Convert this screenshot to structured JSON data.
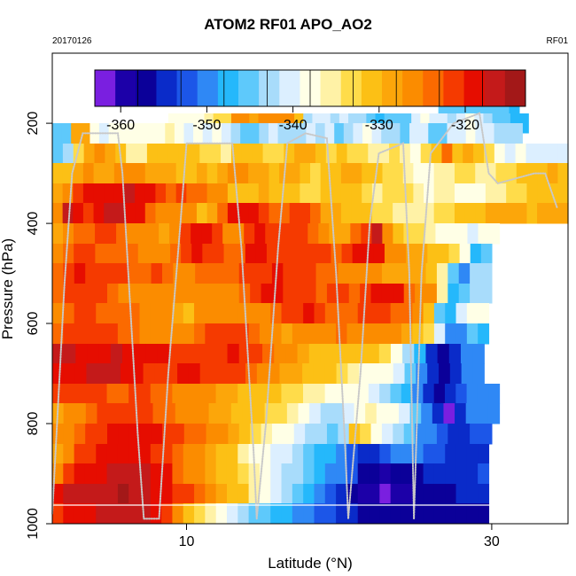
{
  "header": {
    "title": "ATOM2 RF01 APO_AO2",
    "date": "20170126",
    "flight": "RF01"
  },
  "chart_data": {
    "type": "heatmap",
    "title": "ATOM2 RF01 APO_AO2",
    "xlabel": "Latitude (°N)",
    "ylabel": "Pressure (hPa)",
    "xlim": [
      1.2,
      35.0
    ],
    "ylim": [
      1000,
      60
    ],
    "xticks": [
      10,
      30
    ],
    "yticks": [
      200,
      400,
      600,
      800,
      1000
    ],
    "colorbar": {
      "min": -363,
      "max": -313,
      "ticks": [
        -360,
        -350,
        -340,
        -330,
        -320
      ],
      "colors": [
        "#7a1fe0",
        "#1c00a8",
        "#0b0099",
        "#0a2bc9",
        "#1c56e8",
        "#2f88f5",
        "#25b8fb",
        "#5ec9fb",
        "#a8dcfb",
        "#dcefff",
        "#ffffe6",
        "#fff2a6",
        "#ffdc4a",
        "#fcc015",
        "#fca60a",
        "#fb8c00",
        "#fb6a00",
        "#f53a00",
        "#e60d00",
        "#c41a1a",
        "#a31818"
      ]
    },
    "rows": [
      {
        "p": 180,
        "x0": 26.5,
        "x1": 31.8,
        "v": [
          -346,
          -346,
          -346,
          -346,
          -346,
          -345,
          -346,
          -347
        ]
      },
      {
        "p": 200,
        "x0": 8.8,
        "x1": 32.4,
        "v": [
          -338,
          -337,
          -337,
          -337,
          -336,
          -334,
          -333,
          -325,
          -326,
          -328,
          -326,
          -325,
          -327,
          -326,
          -330,
          -342,
          -341,
          -341,
          -343,
          -341,
          -342,
          -343,
          -346,
          -347,
          -346,
          -344,
          -344,
          -341,
          -339,
          -340,
          -341,
          -343,
          -341,
          -338,
          -340,
          -343,
          -345,
          -346,
          -347,
          -347
        ]
      },
      {
        "p": 220,
        "x0": 1.2,
        "x1": 32.0,
        "v": [
          -345,
          -346,
          -328,
          -329,
          -339,
          -340,
          -339,
          -338,
          -338,
          -337,
          -337,
          -339,
          -336,
          -338,
          -341,
          -338,
          -341,
          -339,
          -340,
          -342,
          -344,
          -344,
          -343,
          -340,
          -342,
          -342,
          -342,
          -340,
          -342,
          -341,
          -344,
          -342,
          -340,
          -339,
          -341,
          -342,
          -343,
          -345,
          -340,
          -341,
          -346,
          -344,
          -340,
          -341,
          -338,
          -340,
          -341,
          -343,
          -342,
          -343
        ]
      },
      {
        "p": 260,
        "x0": 1.2,
        "x1": 35.0,
        "v": [
          -345,
          -342,
          -333,
          -328,
          -326,
          -328,
          -332,
          -335,
          -336,
          -332,
          -330,
          -331,
          -332,
          -331,
          -333,
          -334,
          -335,
          -332,
          -330,
          -331,
          -334,
          -333,
          -332,
          -329,
          -328,
          -330,
          -333,
          -332,
          -333,
          -333,
          -336,
          -335,
          -334,
          -336,
          -339,
          -333,
          -331,
          -324,
          -330,
          -329,
          -332,
          -333,
          -338,
          -340,
          -339,
          -341,
          -341,
          -340,
          -341
        ]
      },
      {
        "p": 300,
        "x0": 1.2,
        "x1": 35.0,
        "v": [
          -331,
          -330,
          -328,
          -327,
          -329,
          -328,
          -326,
          -326,
          -327,
          -329,
          -328,
          -328,
          -330,
          -331,
          -329,
          -330,
          -328,
          -326,
          -326,
          -328,
          -329,
          -331,
          -329,
          -328,
          -330,
          -333,
          -332,
          -330,
          -329,
          -329,
          -331,
          -332,
          -333,
          -334,
          -336,
          -337,
          -337,
          -336,
          -335,
          -334,
          -334,
          -336,
          -335,
          -334,
          -333,
          -332,
          -331,
          -330,
          -329,
          -330
        ]
      },
      {
        "p": 340,
        "x0": 1.2,
        "x1": 35.0,
        "v": [
          -329,
          -325,
          -322,
          -319,
          -318,
          -319,
          -318,
          -316,
          -318,
          -320,
          -322,
          -323,
          -322,
          -323,
          -324,
          -326,
          -327,
          -330,
          -332,
          -330,
          -329,
          -330,
          -331,
          -332,
          -333,
          -334,
          -332,
          -330,
          -330,
          -332,
          -334,
          -335,
          -334,
          -333,
          -334,
          -336,
          -337,
          -336,
          -336,
          -337,
          -338,
          -337,
          -336,
          -335,
          -334,
          -333,
          -332,
          -331,
          -330,
          -330
        ]
      },
      {
        "p": 380,
        "x0": 1.2,
        "x1": 35.0,
        "v": [
          -326,
          -317,
          -320,
          -322,
          -318,
          -317,
          -316,
          -318,
          -320,
          -323,
          -325,
          -326,
          -326,
          -326,
          -330,
          -329,
          -323,
          -320,
          -319,
          -320,
          -322,
          -324,
          -323,
          -322,
          -322,
          -324,
          -328,
          -329,
          -330,
          -331,
          -332,
          -333,
          -334,
          -335,
          -336,
          -336,
          -335,
          -334,
          -333,
          -332,
          -331,
          -330,
          -329,
          -328,
          -328,
          -329,
          -330,
          -329,
          -328,
          -328
        ]
      },
      {
        "p": 420,
        "x0": 1.2,
        "x1": 30.5,
        "v": [
          -329,
          -325,
          -323,
          -323,
          -322,
          -322,
          -323,
          -325,
          -326,
          -327,
          -328,
          -326,
          -322,
          -319,
          -319,
          -322,
          -325,
          -325,
          -322,
          -320,
          -321,
          -321,
          -322,
          -321,
          -324,
          -326,
          -328,
          -329,
          -324,
          -322,
          -317,
          -325,
          -330,
          -333,
          -334,
          -336,
          -337,
          -338,
          -339,
          -340,
          -339,
          -338
        ]
      },
      {
        "p": 460,
        "x0": 1.2,
        "x1": 30.0,
        "v": [
          -327,
          -324,
          -322,
          -322,
          -323,
          -323,
          -324,
          -324,
          -325,
          -326,
          -326,
          -324,
          -322,
          -320,
          -321,
          -322,
          -323,
          -323,
          -320,
          -320,
          -321,
          -322,
          -322,
          -321,
          -322,
          -322,
          -323,
          -321,
          -319,
          -318,
          -320,
          -325,
          -327,
          -328,
          -329,
          -330,
          -331,
          -333,
          -338,
          -347,
          -344
        ]
      },
      {
        "p": 500,
        "x0": 1.2,
        "x1": 30.0,
        "v": [
          -324,
          -322,
          -320,
          -321,
          -322,
          -322,
          -322,
          -323,
          -323,
          -322,
          -324,
          -325,
          -325,
          -324,
          -324,
          -323,
          -323,
          -322,
          -321,
          -321,
          -320,
          -321,
          -322,
          -322,
          -323,
          -324,
          -325,
          -326,
          -326,
          -327,
          -328,
          -329,
          -328,
          -328,
          -330,
          -335,
          -344,
          -349,
          -343,
          -342
        ]
      },
      {
        "p": 540,
        "x0": 1.2,
        "x1": 30.0,
        "v": [
          -323,
          -322,
          -321,
          -321,
          -322,
          -324,
          -325,
          -326,
          -326,
          -325,
          -325,
          -326,
          -327,
          -327,
          -326,
          -325,
          -325,
          -324,
          -322,
          -320,
          -320,
          -321,
          -321,
          -322,
          -324,
          -322,
          -322,
          -323,
          -322,
          -320,
          -318,
          -320,
          -323,
          -326,
          -327,
          -336,
          -347,
          -346,
          -342,
          -342
        ]
      },
      {
        "p": 580,
        "x0": 1.2,
        "x1": 29.8,
        "v": [
          -325,
          -323,
          -322,
          -322,
          -323,
          -324,
          -323,
          -324,
          -325,
          -326,
          -327,
          -329,
          -330,
          -327,
          -326,
          -326,
          -327,
          -326,
          -326,
          -325,
          -323,
          -322,
          -321,
          -320,
          -321,
          -323,
          -323,
          -324,
          -322,
          -321,
          -322,
          -323,
          -323,
          -327,
          -330,
          -346,
          -348,
          -340,
          -338,
          -339
        ]
      },
      {
        "p": 620,
        "x0": 1.2,
        "x1": 29.8,
        "v": [
          -323,
          -322,
          -321,
          -321,
          -321,
          -322,
          -323,
          -323,
          -325,
          -325,
          -325,
          -326,
          -325,
          -324,
          -322,
          -321,
          -321,
          -322,
          -324,
          -326,
          -327,
          -328,
          -327,
          -326,
          -325,
          -325,
          -324,
          -325,
          -326,
          -326,
          -327,
          -327,
          -329,
          -331,
          -333,
          -340,
          -350,
          -350,
          -346,
          -348
        ]
      },
      {
        "p": 660,
        "x0": 1.2,
        "x1": 29.5,
        "v": [
          -317,
          -317,
          -318,
          -319,
          -318,
          -317,
          -318,
          -318,
          -319,
          -320,
          -321,
          -321,
          -321,
          -322,
          -321,
          -320,
          -321,
          -322,
          -324,
          -326,
          -327,
          -328,
          -330,
          -331,
          -332,
          -331,
          -330,
          -331,
          -333,
          -337,
          -342,
          -348,
          -355,
          -356,
          -354,
          -350,
          -351
        ]
      },
      {
        "p": 700,
        "x0": 1.2,
        "x1": 29.5,
        "v": [
          -318,
          -318,
          -318,
          -317,
          -316,
          -317,
          -318,
          -320,
          -321,
          -322,
          -321,
          -320,
          -320,
          -321,
          -322,
          -322,
          -322,
          -323,
          -325,
          -327,
          -328,
          -329,
          -330,
          -331,
          -332,
          -334,
          -336,
          -337,
          -337,
          -338,
          -340,
          -344,
          -349,
          -355,
          -358,
          -355,
          -350,
          -351
        ]
      },
      {
        "p": 740,
        "x0": 1.2,
        "x1": 30.5,
        "v": [
          -322,
          -322,
          -321,
          -321,
          -322,
          -323,
          -323,
          -322,
          -322,
          -323,
          -324,
          -326,
          -326,
          -327,
          -327,
          -328,
          -329,
          -330,
          -331,
          -332,
          -332,
          -333,
          -334,
          -335,
          -336,
          -337,
          -338,
          -338,
          -339,
          -340,
          -342,
          -344,
          -347,
          -351,
          -354,
          -357,
          -355,
          -352,
          -351,
          -350,
          -349
        ]
      },
      {
        "p": 780,
        "x0": 1.2,
        "x1": 30.5,
        "v": [
          -328,
          -326,
          -325,
          -323,
          -322,
          -321,
          -321,
          -322,
          -322,
          -323,
          -324,
          -325,
          -326,
          -327,
          -328,
          -329,
          -330,
          -331,
          -332,
          -333,
          -334,
          -335,
          -337,
          -340,
          -342,
          -342,
          -340,
          -337,
          -336,
          -338,
          -339,
          -341,
          -345,
          -349,
          -355,
          -362,
          -354,
          -351,
          -350,
          -350
        ]
      },
      {
        "p": 820,
        "x0": 1.2,
        "x1": 30.0,
        "v": [
          -327,
          -325,
          -324,
          -322,
          -321,
          -320,
          -319,
          -319,
          -319,
          -320,
          -321,
          -322,
          -323,
          -324,
          -326,
          -327,
          -329,
          -331,
          -333,
          -335,
          -337,
          -339,
          -340,
          -342,
          -343,
          -344,
          -343,
          -330,
          -333,
          -338,
          -341,
          -343,
          -346,
          -349,
          -351,
          -353,
          -355,
          -354,
          -353,
          -352
        ]
      },
      {
        "p": 860,
        "x0": 1.2,
        "x1": 29.8,
        "v": [
          -328,
          -325,
          -322,
          -321,
          -320,
          -319,
          -319,
          -319,
          -320,
          -321,
          -322,
          -323,
          -325,
          -327,
          -329,
          -330,
          -332,
          -335,
          -337,
          -339,
          -340,
          -341,
          -343,
          -345,
          -347,
          -348,
          -350,
          -352,
          -355,
          -355,
          -353,
          -351,
          -350,
          -351,
          -352,
          -353,
          -355,
          -355,
          -354,
          -354
        ]
      },
      {
        "p": 900,
        "x0": 1.2,
        "x1": 29.8,
        "v": [
          -326,
          -322,
          -320,
          -319,
          -318,
          -317,
          -317,
          -317,
          -317,
          -318,
          -320,
          -323,
          -325,
          -327,
          -328,
          -330,
          -332,
          -334,
          -336,
          -338,
          -340,
          -342,
          -343,
          -345,
          -347,
          -349,
          -351,
          -353,
          -356,
          -358,
          -359,
          -358,
          -357,
          -356,
          -355,
          -354,
          -354,
          -354,
          -354,
          -353
        ]
      },
      {
        "p": 940,
        "x0": 1.2,
        "x1": 29.8,
        "v": [
          -318,
          -317,
          -316,
          -316,
          -317,
          -316,
          -315,
          -316,
          -317,
          -318,
          -319,
          -321,
          -322,
          -324,
          -326,
          -328,
          -330,
          -332,
          -335,
          -338,
          -341,
          -343,
          -345,
          -348,
          -351,
          -353,
          -355,
          -357,
          -359,
          -360,
          -361,
          -360,
          -359,
          -358,
          -357,
          -356,
          -356,
          -355,
          -355,
          -355
        ]
      },
      {
        "p": 980,
        "x0": 1.2,
        "x1": 29.8,
        "v": [
          -322,
          -320,
          -319,
          -318,
          -317,
          -316,
          -316,
          -316,
          -317,
          -319,
          -322,
          -326,
          -330,
          -333,
          -336,
          -338,
          -340,
          -342,
          -344,
          -345,
          -347,
          -348,
          -350,
          -351,
          -352,
          -353,
          -354,
          -355,
          -356,
          -357,
          -358,
          -358,
          -357,
          -356,
          -356,
          -356,
          -356,
          -356,
          -356,
          -356
        ]
      }
    ],
    "flight_track": [
      [
        1.2,
        980
      ],
      [
        2.0,
        520
      ],
      [
        2.5,
        300
      ],
      [
        3.2,
        220
      ],
      [
        5.5,
        220
      ],
      [
        5.8,
        300
      ],
      [
        6.8,
        820
      ],
      [
        7.2,
        990
      ],
      [
        8.2,
        990
      ],
      [
        8.8,
        700
      ],
      [
        9.6,
        400
      ],
      [
        10.0,
        240
      ],
      [
        13.0,
        240
      ],
      [
        13.6,
        450
      ],
      [
        14.4,
        860
      ],
      [
        14.6,
        990
      ],
      [
        15.2,
        800
      ],
      [
        16.0,
        450
      ],
      [
        16.6,
        240
      ],
      [
        17.8,
        220
      ],
      [
        19.2,
        230
      ],
      [
        19.8,
        500
      ],
      [
        20.4,
        850
      ],
      [
        20.6,
        990
      ],
      [
        21.4,
        700
      ],
      [
        22.0,
        400
      ],
      [
        22.6,
        260
      ],
      [
        24.2,
        240
      ],
      [
        24.6,
        500
      ],
      [
        24.9,
        990
      ],
      [
        25.4,
        500
      ],
      [
        26.0,
        260
      ],
      [
        27.5,
        200
      ],
      [
        29.2,
        180
      ],
      [
        29.8,
        300
      ],
      [
        30.4,
        320
      ],
      [
        32.8,
        300
      ],
      [
        33.5,
        300
      ],
      [
        34.3,
        370
      ]
    ]
  },
  "labels": {
    "xlabel": "Latitude (°N)",
    "ylabel": "Pressure (hPa)"
  }
}
